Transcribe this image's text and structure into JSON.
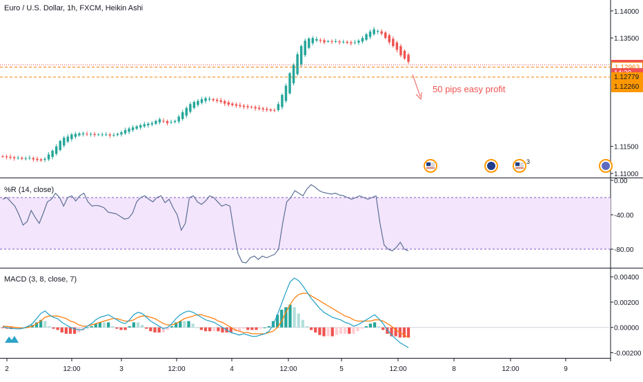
{
  "title": "Euro / U.S. Dollar, 1h, FXCM, Heikin Ashi",
  "annotation": "50 pips easy profit",
  "colors": {
    "up": "#26a69a",
    "down": "#ef5350",
    "hist_up_light": "#b2dfdb",
    "hist_down_light": "#ffcdd2",
    "orange_line": "#f57c00",
    "red_line": "#e53935",
    "macd_line": "#2aa3c8",
    "signal_line": "#ff7f0e",
    "wr_line": "#5b6f94",
    "wr_fill": "#f3e5fc",
    "wr_band": "#7e57c2"
  },
  "price_axis": {
    "ticks": [
      "1.14000",
      "1.13500",
      "1.11500",
      "1.11000"
    ],
    "partial_tick": "1."
  },
  "price_labels": [
    {
      "text": "1.13006",
      "bg": "#ef5350",
      "fg": "#ffffff"
    },
    {
      "text": "1.12963",
      "bg": "#ffffff",
      "fg": "#f57c00"
    },
    {
      "text": "14:20",
      "bg": "#ef5350",
      "fg": "#ffffff"
    },
    {
      "text": "1.12779",
      "bg": "#ff9800",
      "fg": "#131722"
    },
    {
      "text": "1.12260",
      "bg": "#ff9800",
      "fg": "#131722"
    }
  ],
  "time_axis": [
    "2",
    "12:00",
    "3",
    "12:00",
    "4",
    "12:00",
    "5",
    "12:00",
    "8",
    "12:00",
    "9"
  ],
  "event_badge_count": "3",
  "wr": {
    "label": "%R (14, close)",
    "ticks": [
      "0.00",
      "-40.00",
      "-80.00"
    ]
  },
  "macd": {
    "label": "MACD (3, 8, close, 7)",
    "ticks": [
      "0.00400",
      "0.00200",
      "0.00000",
      "-0.00200"
    ]
  },
  "chart_data": [
    {
      "type": "candlestick",
      "title": "Euro / U.S. Dollar, 1h, FXCM, Heikin Ashi",
      "ylim": [
        1.1095,
        1.1415
      ],
      "y_ticks": [
        1.14,
        1.135,
        1.115,
        1.11
      ],
      "horizontal_lines": [
        1.13006,
        1.12963,
        1.12779
      ],
      "x_labels": [
        "2",
        "12:00",
        "3",
        "12:00",
        "4",
        "12:00",
        "5",
        "12:00",
        "8",
        "12:00",
        "9"
      ],
      "closes": [
        1.1131,
        1.113,
        1.1129,
        1.1128,
        1.1129,
        1.1127,
        1.1128,
        1.1129,
        1.1126,
        1.1125,
        1.1124,
        1.1127,
        1.1135,
        1.1142,
        1.115,
        1.116,
        1.1166,
        1.1168,
        1.1172,
        1.1173,
        1.1174,
        1.1174,
        1.1172,
        1.1173,
        1.1171,
        1.1172,
        1.1172,
        1.1172,
        1.117,
        1.1171,
        1.1173,
        1.1176,
        1.118,
        1.1183,
        1.1185,
        1.1187,
        1.1189,
        1.1191,
        1.1192,
        1.1193,
        1.1197,
        1.12,
        1.1196,
        1.1193,
        1.1195,
        1.1197,
        1.1205,
        1.1213,
        1.1221,
        1.1228,
        1.1232,
        1.1234,
        1.1237,
        1.1239,
        1.1238,
        1.1235,
        1.1234,
        1.1232,
        1.1229,
        1.1227,
        1.1226,
        1.1225,
        1.1224,
        1.1223,
        1.1222,
        1.1222,
        1.122,
        1.1219,
        1.1218,
        1.1217,
        1.1216,
        1.1217,
        1.1228,
        1.1245,
        1.1262,
        1.1285,
        1.13,
        1.132,
        1.1335,
        1.1345,
        1.1349,
        1.135,
        1.1348,
        1.1345,
        1.1342,
        1.1344,
        1.1343,
        1.1344,
        1.1342,
        1.1343,
        1.1341,
        1.134,
        1.1342,
        1.1345,
        1.135,
        1.1357,
        1.1362,
        1.1366,
        1.1363,
        1.1358,
        1.135,
        1.1342,
        1.1335,
        1.1328,
        1.1318,
        1.1312,
        1.1306
      ]
    },
    {
      "type": "line",
      "title": "%R (14, close)",
      "ylim": [
        -100,
        0
      ],
      "bands": [
        -20,
        -80
      ],
      "values": [
        -22,
        -20,
        -25,
        -30,
        -40,
        -52,
        -48,
        -35,
        -43,
        -50,
        -38,
        -25,
        -22,
        -15,
        -20,
        -30,
        -20,
        -18,
        -24,
        -18,
        -15,
        -25,
        -30,
        -29,
        -30,
        -32,
        -37,
        -38,
        -39,
        -42,
        -45,
        -44,
        -38,
        -25,
        -20,
        -18,
        -22,
        -25,
        -20,
        -18,
        -26,
        -22,
        -32,
        -40,
        -58,
        -50,
        -20,
        -18,
        -25,
        -28,
        -24,
        -18,
        -20,
        -25,
        -30,
        -28,
        -30,
        -60,
        -85,
        -95,
        -96,
        -90,
        -88,
        -92,
        -88,
        -90,
        -88,
        -86,
        -80,
        -50,
        -25,
        -20,
        -12,
        -15,
        -18,
        -10,
        -5,
        -8,
        -12,
        -14,
        -15,
        -16,
        -15,
        -17,
        -18,
        -20,
        -22,
        -20,
        -18,
        -20,
        -22,
        -20,
        -18,
        -50,
        -75,
        -80,
        -82,
        -78,
        -72,
        -80,
        -82
      ]
    },
    {
      "type": "line+bar",
      "title": "MACD (3, 8, close, 7)",
      "ylim": [
        -0.0023,
        0.0045
      ],
      "series": [
        {
          "name": "MACD",
          "values": [
            5e-05,
            -2e-05,
            -8e-05,
            -0.0001,
            -0.00012,
            -5e-05,
            0.0001,
            0.0003,
            0.0007,
            0.0011,
            0.0013,
            0.001,
            0.0008,
            0.0007,
            0.0004,
            0.0002,
            0.0,
            -0.0001,
            -0.0002,
            -0.00015,
            0.0001,
            0.0003,
            0.0006,
            0.0008,
            0.0009,
            0.001,
            0.0008,
            0.0006,
            0.0004,
            0.0003,
            0.0006,
            0.001,
            0.0012,
            0.0011,
            0.0008,
            0.0005,
            0.0003,
            0.0001,
            -0.0001,
            0.0,
            0.0003,
            0.0007,
            0.001,
            0.0012,
            0.0013,
            0.0012,
            0.001,
            0.0008,
            0.0006,
            0.0005,
            0.0004,
            0.0002,
            0.0,
            -0.0002,
            -0.0004,
            -0.0005,
            -0.0006,
            -0.0005,
            -0.0006,
            -0.0007,
            -0.0007,
            -0.0006,
            -0.0005,
            -0.0003,
            0.0002,
            0.001,
            0.0019,
            0.0028,
            0.0036,
            0.0039,
            0.0037,
            0.0033,
            0.0028,
            0.0023,
            0.0019,
            0.0015,
            0.0012,
            0.001,
            0.0008,
            0.0007,
            0.0006,
            0.0004,
            0.0003,
            0.0001,
            0.0002,
            0.0004,
            0.0006,
            0.0008,
            0.001,
            0.0007,
            0.0003,
            -0.0002,
            -0.0006,
            -0.0009,
            -0.0012,
            -0.0014,
            -0.0016
          ]
        },
        {
          "name": "Signal",
          "values": [
            0.0001,
            8e-05,
            5e-05,
            0.0,
            -3e-05,
            -4e-05,
            0.0,
            0.0001,
            0.0003,
            0.0005,
            0.0008,
            0.0009,
            0.0009,
            0.0009,
            0.0008,
            0.0007,
            0.0005,
            0.0004,
            0.0002,
            0.0001,
            0.0001,
            0.0002,
            0.0003,
            0.0004,
            0.0005,
            0.0006,
            0.0007,
            0.0007,
            0.0006,
            0.0005,
            0.0005,
            0.0006,
            0.0008,
            0.0009,
            0.0009,
            0.0008,
            0.0007,
            0.0005,
            0.0003,
            0.0002,
            0.0002,
            0.0003,
            0.0005,
            0.0007,
            0.0008,
            0.0009,
            0.001,
            0.001,
            0.0009,
            0.0008,
            0.0007,
            0.0005,
            0.0004,
            0.0002,
            0.0,
            -0.0002,
            -0.0003,
            -0.0004,
            -0.0004,
            -0.0005,
            -0.0005,
            -0.0005,
            -0.0005,
            -0.0004,
            -0.0003,
            0.0,
            0.0005,
            0.0012,
            0.0018,
            0.0023,
            0.0026,
            0.0027,
            0.0027,
            0.0025,
            0.0023,
            0.0021,
            0.0019,
            0.0017,
            0.0015,
            0.0013,
            0.0011,
            0.0009,
            0.0008,
            0.0006,
            0.0005,
            0.0005,
            0.0005,
            0.0005,
            0.0006,
            0.0006,
            0.0005,
            0.0003,
            0.0001,
            -0.0002,
            -0.0004,
            -0.0006,
            -0.0008
          ]
        }
      ]
    }
  ]
}
